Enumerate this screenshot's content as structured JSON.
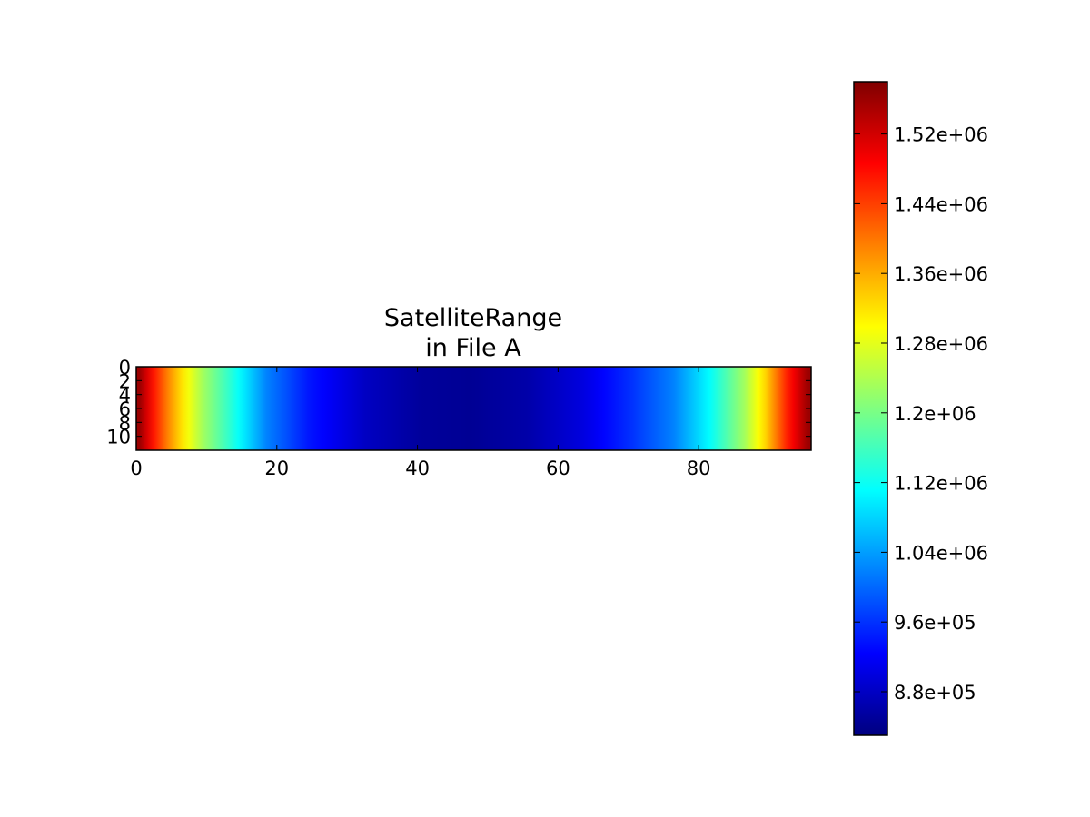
{
  "chart_data": {
    "type": "heatmap",
    "title_lines": [
      "SatelliteRange",
      "in File A"
    ],
    "xlabel": "",
    "ylabel": "",
    "x_range": [
      0,
      96
    ],
    "y_range": [
      0,
      12
    ],
    "x_ticks": [
      {
        "value": 0,
        "label": "0"
      },
      {
        "value": 20,
        "label": "20"
      },
      {
        "value": 40,
        "label": "40"
      },
      {
        "value": 60,
        "label": "60"
      },
      {
        "value": 80,
        "label": "80"
      }
    ],
    "y_ticks": [
      {
        "value": 0,
        "label": "0"
      },
      {
        "value": 2,
        "label": "2"
      },
      {
        "value": 4,
        "label": "4"
      },
      {
        "value": 6,
        "label": "6"
      },
      {
        "value": 8,
        "label": "8"
      },
      {
        "value": 10,
        "label": "10"
      }
    ],
    "rows": 12,
    "columns": 96,
    "orientation": "values vary along x only (constant down each column)",
    "column_profile": {
      "columns": [
        0,
        2,
        4,
        6,
        9,
        13,
        18,
        24,
        32,
        40,
        47,
        55,
        63,
        70,
        76,
        81,
        86,
        89,
        92,
        95
      ],
      "values": [
        1560000,
        1470000,
        1390000,
        1320000,
        1230000,
        1140000,
        1020000,
        940000,
        880000,
        850000,
        845000,
        860000,
        900000,
        960000,
        1020000,
        1110000,
        1230000,
        1330000,
        1460000,
        1560000
      ]
    },
    "colorbar": {
      "colormap": "jet",
      "vmin": 830000,
      "vmax": 1580000,
      "ticks": [
        {
          "value": 880000,
          "label": "8.8e+05"
        },
        {
          "value": 960000,
          "label": "9.6e+05"
        },
        {
          "value": 1040000,
          "label": "1.04e+06"
        },
        {
          "value": 1120000,
          "label": "1.12e+06"
        },
        {
          "value": 1200000,
          "label": "1.2e+06"
        },
        {
          "value": 1280000,
          "label": "1.28e+06"
        },
        {
          "value": 1360000,
          "label": "1.36e+06"
        },
        {
          "value": 1440000,
          "label": "1.44e+06"
        },
        {
          "value": 1520000,
          "label": "1.52e+06"
        }
      ]
    },
    "grid": false,
    "legend": "none"
  }
}
